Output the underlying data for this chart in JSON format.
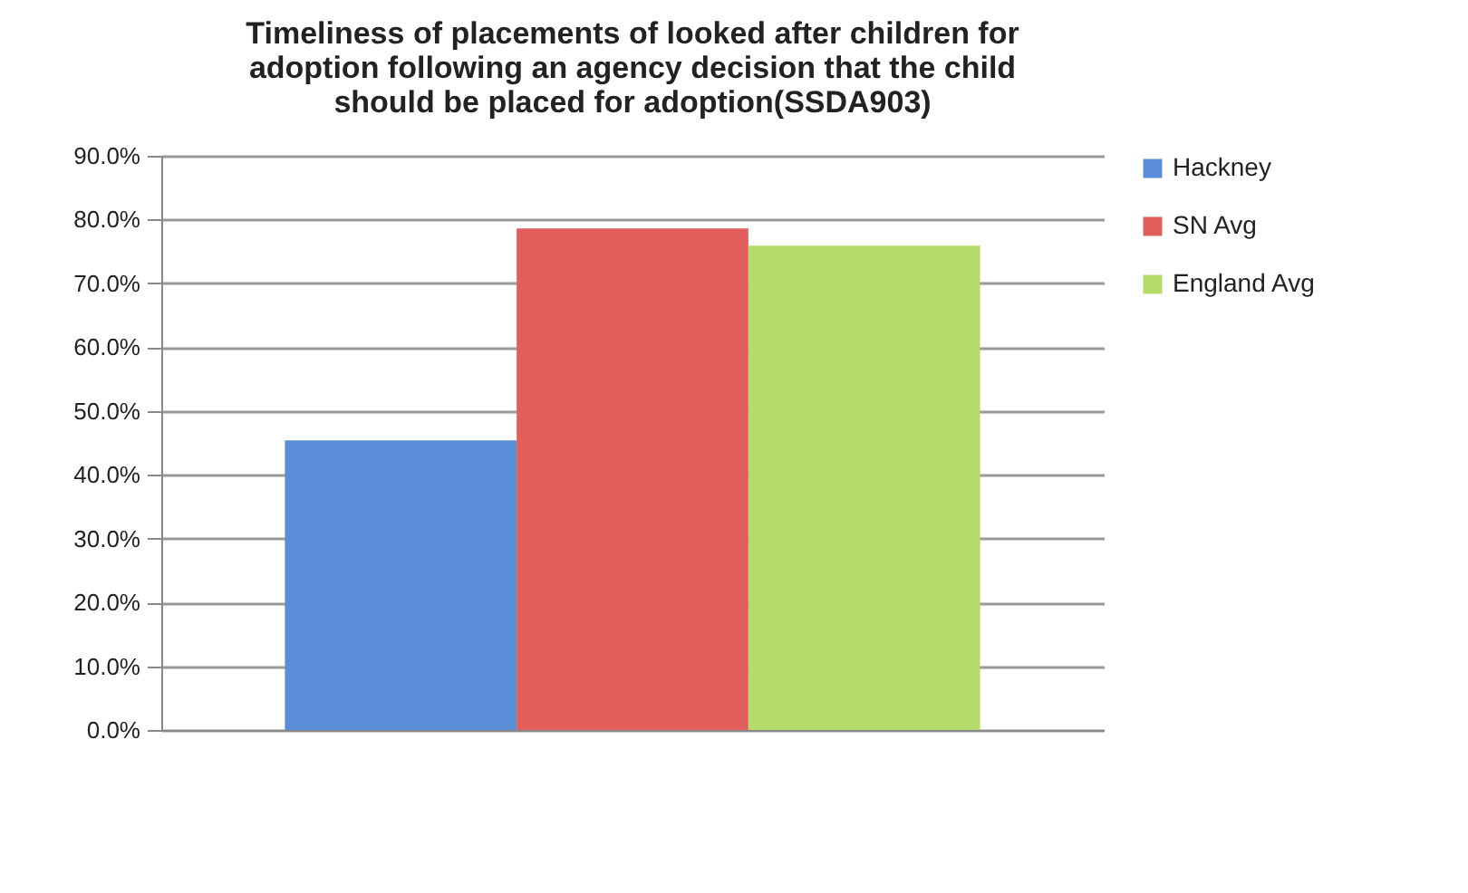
{
  "chart_data": {
    "type": "bar",
    "title": "Timeliness of placements of looked after children for adoption following an agency decision that the child should be placed for adoption(SSDA903)",
    "categories": [
      null
    ],
    "series": [
      {
        "name": "Hackney",
        "color": "#5b8ed8",
        "values": [
          45.4
        ]
      },
      {
        "name": "SN Avg",
        "color": "#e05f5c",
        "values": [
          78.6
        ]
      },
      {
        "name": "England Avg",
        "color": "#b5db6a",
        "values": [
          75.9
        ]
      }
    ],
    "ylim": [
      0,
      90
    ],
    "yticks": [
      {
        "value": 0,
        "label": "0.0%"
      },
      {
        "value": 10,
        "label": "10.0%"
      },
      {
        "value": 20,
        "label": "20.0%"
      },
      {
        "value": 30,
        "label": "30.0%"
      },
      {
        "value": 40,
        "label": "40.0%"
      },
      {
        "value": 50,
        "label": "50.0%"
      },
      {
        "value": 60,
        "label": "60.0%"
      },
      {
        "value": 70,
        "label": "70.0%"
      },
      {
        "value": 80,
        "label": "80.0%"
      },
      {
        "value": 90,
        "label": "90.0%"
      }
    ],
    "grid": "y",
    "legend": "right"
  }
}
